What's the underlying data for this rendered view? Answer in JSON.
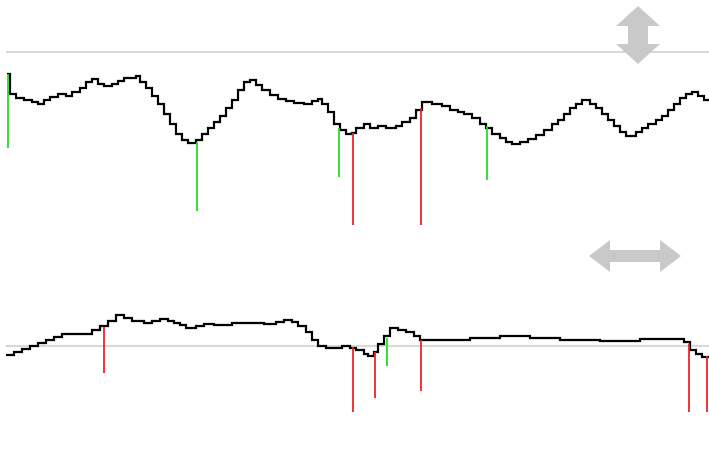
{
  "colors": {
    "background": "#ffffff",
    "trace": "#000000",
    "baseline": "#cccccc",
    "marker_green": "#22dd22",
    "marker_red": "#ee2222",
    "icon_gray": "#c9c9c9"
  },
  "icons": {
    "top_right": "vertical-double-arrow-icon",
    "middle_right": "horizontal-double-arrow-icon"
  },
  "panels": [
    {
      "name": "upper",
      "markers": [
        {
          "color": "green"
        },
        {
          "color": "green"
        },
        {
          "color": "green"
        },
        {
          "color": "red"
        },
        {
          "color": "red"
        },
        {
          "color": "green"
        }
      ]
    },
    {
      "name": "lower",
      "markers": [
        {
          "color": "red"
        },
        {
          "color": "red"
        },
        {
          "color": "red"
        },
        {
          "color": "green"
        },
        {
          "color": "red"
        },
        {
          "color": "red"
        },
        {
          "color": "red"
        }
      ]
    }
  ]
}
